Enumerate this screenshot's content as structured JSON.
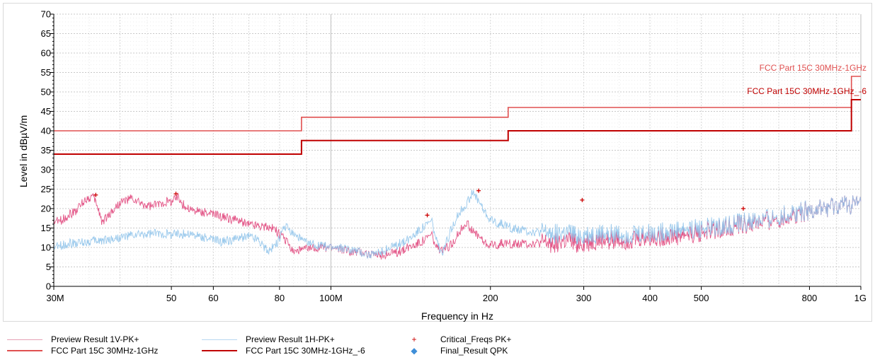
{
  "chart_data": {
    "type": "line",
    "xscale": "log",
    "xlim": [
      30000000,
      1000000000
    ],
    "ylim": [
      0,
      70
    ],
    "xlabel": "Frequency in Hz",
    "ylabel": "Level in dBµV/m",
    "grid": true,
    "x_tick_labels": [
      {
        "value": 30000000,
        "label": "30M"
      },
      {
        "value": 50000000,
        "label": "50"
      },
      {
        "value": 60000000,
        "label": "60"
      },
      {
        "value": 80000000,
        "label": "80"
      },
      {
        "value": 100000000,
        "label": "100M"
      },
      {
        "value": 200000000,
        "label": "200"
      },
      {
        "value": 300000000,
        "label": "300"
      },
      {
        "value": 400000000,
        "label": "400"
      },
      {
        "value": 500000000,
        "label": "500"
      },
      {
        "value": 800000000,
        "label": "800"
      },
      {
        "value": 1000000000,
        "label": "1G"
      }
    ],
    "y_ticks": [
      0,
      5,
      10,
      15,
      20,
      25,
      30,
      35,
      40,
      45,
      50,
      55,
      60,
      65,
      70
    ],
    "series": [
      {
        "name": "Preview Result 1V-PK+",
        "color": "#e0457b",
        "x": [
          30000000,
          31000000,
          33000000,
          34500000,
          35500000,
          36200000,
          37000000,
          38500000,
          40000000,
          42000000,
          44000000,
          46000000,
          48000000,
          50000000,
          51500000,
          53000000,
          55000000,
          58000000,
          62000000,
          66000000,
          70000000,
          74000000,
          78000000,
          82000000,
          85000000,
          90000000,
          95000000,
          100000000,
          105000000,
          110000000,
          115000000,
          120000000,
          125000000,
          130000000,
          135000000,
          140000000,
          145000000,
          150000000,
          155000000,
          158000000,
          162000000,
          168000000,
          175000000,
          180000000,
          185000000,
          190000000,
          195000000,
          200000000,
          210000000,
          220000000,
          240000000,
          260000000,
          280000000,
          300000000,
          330000000,
          360000000,
          400000000,
          450000000,
          500000000,
          550000000,
          600000000,
          650000000,
          700000000,
          750000000,
          800000000,
          850000000,
          900000000,
          950000000,
          1000000000
        ],
        "y": [
          16.5,
          17,
          19.5,
          22.5,
          23,
          21,
          16.5,
          19,
          21.5,
          22.5,
          21,
          20.5,
          21.5,
          22,
          23,
          20.5,
          19.5,
          19,
          18,
          17,
          16,
          15.5,
          15,
          12,
          9,
          9.5,
          10,
          10,
          9.5,
          9,
          9,
          8,
          8,
          8.5,
          9,
          10,
          11,
          12,
          13.5,
          10,
          9,
          10.5,
          14,
          16.5,
          14,
          13,
          11,
          10.5,
          11,
          11,
          11,
          11,
          11.5,
          11,
          12,
          12,
          12.5,
          13,
          14,
          15,
          16,
          16.5,
          17.5,
          18.5,
          19.5,
          20,
          20.5,
          21,
          21
        ]
      },
      {
        "name": "Preview Result 1H-PK+",
        "color": "#8fc3ea",
        "x": [
          30000000,
          32000000,
          35000000,
          38000000,
          42000000,
          46000000,
          50000000,
          54000000,
          58000000,
          62000000,
          66000000,
          70000000,
          73000000,
          76000000,
          79000000,
          82000000,
          86000000,
          90000000,
          95000000,
          100000000,
          110000000,
          120000000,
          130000000,
          140000000,
          145000000,
          150000000,
          155000000,
          158000000,
          162000000,
          166000000,
          170000000,
          175000000,
          180000000,
          185000000,
          190000000,
          195000000,
          200000000,
          210000000,
          220000000,
          240000000,
          260000000,
          280000000,
          300000000,
          330000000,
          360000000,
          400000000,
          450000000,
          500000000,
          550000000,
          600000000,
          650000000,
          700000000,
          750000000,
          800000000,
          850000000,
          900000000,
          950000000,
          1000000000
        ],
        "y": [
          10,
          11,
          11.5,
          12,
          13,
          13.5,
          13.5,
          13.5,
          12.5,
          11.5,
          12,
          13,
          12,
          9,
          11,
          15.5,
          13,
          11,
          10.5,
          10,
          9.5,
          8,
          10,
          12,
          14,
          15.5,
          17,
          12,
          8,
          12,
          16,
          19,
          21,
          24,
          22,
          19,
          17,
          16,
          15,
          14,
          13.5,
          13.5,
          13,
          13.5,
          13.5,
          13.5,
          14.5,
          15,
          15.5,
          16.5,
          17,
          18,
          19,
          19.5,
          20,
          20.5,
          21,
          21
        ]
      },
      {
        "name": "FCC Part 15C 30MHz-1GHz",
        "color": "#e05050",
        "x": [
          30000000,
          88000000,
          88000000,
          216000000,
          216000000,
          960000000,
          960000000,
          1000000000
        ],
        "y": [
          40,
          40,
          43.5,
          43.5,
          46,
          46,
          54,
          54
        ]
      },
      {
        "name": "FCC Part 15C 30MHz-1GHz_-6",
        "color": "#c00000",
        "x": [
          30000000,
          88000000,
          88000000,
          216000000,
          216000000,
          960000000,
          960000000,
          1000000000
        ],
        "y": [
          34,
          34,
          37.5,
          37.5,
          40,
          40,
          48,
          48
        ]
      }
    ],
    "critical_freqs": {
      "name": "Critical_Freqs PK+",
      "color": "#cc0000",
      "points": [
        {
          "x": 36000000,
          "y": 23.5
        },
        {
          "x": 51000000,
          "y": 23.8
        },
        {
          "x": 152000000,
          "y": 18.3
        },
        {
          "x": 190000000,
          "y": 24.6
        },
        {
          "x": 298000000,
          "y": 22.2
        },
        {
          "x": 600000000,
          "y": 20.0
        }
      ]
    },
    "final_result": {
      "name": "Final_Result QPK",
      "color": "#3f8fd8",
      "points": []
    },
    "limit_labels": [
      {
        "text": "FCC Part 15C 30MHz-1GHz",
        "color": "#e05050",
        "y": 55.5
      },
      {
        "text": "FCC Part 15C 30MHz-1GHz_-6",
        "color": "#c00000",
        "y": 49.5
      }
    ],
    "legend": {
      "placement": "bottom",
      "entries": [
        {
          "label": "Preview Result 1V-PK+",
          "kind": "line",
          "color": "#e6a0b4",
          "width": 1
        },
        {
          "label": "FCC Part 15C 30MHz-1GHz",
          "kind": "line",
          "color": "#e05050",
          "width": 2
        },
        {
          "label": "Preview Result 1H-PK+",
          "kind": "line",
          "color": "#b8d8f0",
          "width": 1
        },
        {
          "label": "FCC Part 15C 30MHz-1GHz_-6",
          "kind": "line",
          "color": "#c00000",
          "width": 2.5
        },
        {
          "label": "Critical_Freqs PK+",
          "kind": "marker",
          "symbol": "+",
          "color": "#cc0000"
        },
        {
          "label": "Final_Result QPK",
          "kind": "marker",
          "symbol": "◆",
          "color": "#3f8fd8"
        }
      ]
    }
  }
}
